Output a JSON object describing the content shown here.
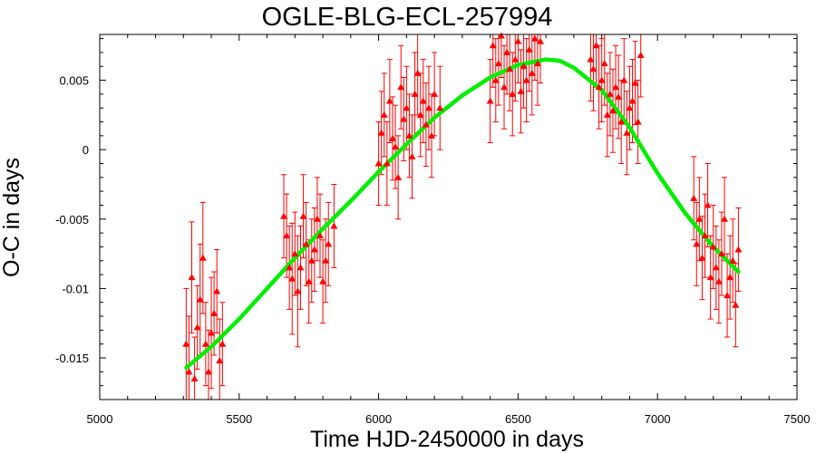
{
  "chart_data": {
    "type": "scatter",
    "title": "OGLE-BLG-ECL-257994",
    "xlabel": "Time HJD-2450000 in days",
    "ylabel": "O-C in days",
    "xlim": [
      5000,
      7500
    ],
    "ylim": [
      -0.018,
      0.0083
    ],
    "xticks": [
      5000,
      5500,
      6000,
      6500,
      7000,
      7500
    ],
    "xtick_labels": [
      "5000",
      "5500",
      "6000",
      "6500",
      "7000",
      "7500"
    ],
    "yticks": [
      -0.015,
      -0.01,
      -0.005,
      0,
      0.005
    ],
    "ytick_labels": [
      "-0.015",
      "-0.01",
      "-0.005",
      "0",
      "0.005"
    ],
    "grid": false,
    "colors": {
      "points": "#ff0000",
      "fit": "#00ee00",
      "frame": "#000000"
    },
    "series": [
      {
        "type": "scatter_with_errorbars",
        "marker": "triangle",
        "points": [
          [
            5310,
            -0.014,
            0.004
          ],
          [
            5320,
            -0.016,
            0.004
          ],
          [
            5330,
            -0.0092,
            0.004
          ],
          [
            5340,
            -0.0165,
            0.003
          ],
          [
            5350,
            -0.0128,
            0.003
          ],
          [
            5360,
            -0.0108,
            0.004
          ],
          [
            5370,
            -0.0078,
            0.004
          ],
          [
            5380,
            -0.014,
            0.003
          ],
          [
            5390,
            -0.016,
            0.003
          ],
          [
            5400,
            -0.0132,
            0.004
          ],
          [
            5410,
            -0.0118,
            0.003
          ],
          [
            5420,
            -0.0102,
            0.003
          ],
          [
            5430,
            -0.0152,
            0.003
          ],
          [
            5440,
            -0.014,
            0.003
          ],
          [
            5660,
            -0.0048,
            0.003
          ],
          [
            5670,
            -0.0062,
            0.003
          ],
          [
            5680,
            -0.0085,
            0.003
          ],
          [
            5690,
            -0.0093,
            0.004
          ],
          [
            5700,
            -0.0075,
            0.003
          ],
          [
            5710,
            -0.0102,
            0.004
          ],
          [
            5720,
            -0.0085,
            0.003
          ],
          [
            5730,
            -0.0048,
            0.003
          ],
          [
            5740,
            -0.0068,
            0.003
          ],
          [
            5750,
            -0.0095,
            0.003
          ],
          [
            5760,
            -0.008,
            0.003
          ],
          [
            5770,
            -0.0072,
            0.003
          ],
          [
            5780,
            -0.005,
            0.003
          ],
          [
            5790,
            -0.0062,
            0.003
          ],
          [
            5800,
            -0.0095,
            0.003
          ],
          [
            5810,
            -0.008,
            0.003
          ],
          [
            5820,
            -0.0068,
            0.003
          ],
          [
            5840,
            -0.0055,
            0.003
          ],
          [
            6000,
            -0.001,
            0.003
          ],
          [
            6010,
            0.0012,
            0.003
          ],
          [
            6020,
            0.0025,
            0.003
          ],
          [
            6030,
            -0.001,
            0.003
          ],
          [
            6040,
            0.0035,
            0.003
          ],
          [
            6050,
            0.0008,
            0.003
          ],
          [
            6060,
            0.0002,
            0.003
          ],
          [
            6070,
            -0.002,
            0.003
          ],
          [
            6080,
            0.0045,
            0.003
          ],
          [
            6090,
            0.0022,
            0.003
          ],
          [
            6100,
            0.003,
            0.003
          ],
          [
            6110,
            0.001,
            0.003
          ],
          [
            6120,
            -0.0005,
            0.003
          ],
          [
            6130,
            0.004,
            0.003
          ],
          [
            6140,
            0.0055,
            0.003
          ],
          [
            6150,
            0.0025,
            0.003
          ],
          [
            6160,
            0.0035,
            0.003
          ],
          [
            6170,
            0.0018,
            0.003
          ],
          [
            6180,
            0.003,
            0.003
          ],
          [
            6190,
            0.001,
            0.003
          ],
          [
            6200,
            0.004,
            0.003
          ],
          [
            6220,
            0.003,
            0.003
          ],
          [
            6400,
            0.0035,
            0.003
          ],
          [
            6410,
            0.0075,
            0.003
          ],
          [
            6420,
            0.005,
            0.003
          ],
          [
            6430,
            0.0062,
            0.003
          ],
          [
            6440,
            0.0082,
            0.003
          ],
          [
            6450,
            0.0045,
            0.003
          ],
          [
            6460,
            0.007,
            0.003
          ],
          [
            6470,
            0.0058,
            0.003
          ],
          [
            6480,
            0.004,
            0.003
          ],
          [
            6490,
            0.0065,
            0.003
          ],
          [
            6500,
            0.0078,
            0.003
          ],
          [
            6510,
            0.0042,
            0.003
          ],
          [
            6520,
            0.006,
            0.003
          ],
          [
            6530,
            0.005,
            0.003
          ],
          [
            6540,
            0.0072,
            0.003
          ],
          [
            6550,
            0.0055,
            0.003
          ],
          [
            6560,
            0.008,
            0.003
          ],
          [
            6570,
            0.0062,
            0.003
          ],
          [
            6580,
            0.0078,
            0.003
          ],
          [
            6760,
            0.0065,
            0.003
          ],
          [
            6770,
            0.0058,
            0.003
          ],
          [
            6780,
            0.0075,
            0.003
          ],
          [
            6790,
            0.0045,
            0.003
          ],
          [
            6800,
            0.005,
            0.003
          ],
          [
            6810,
            0.0062,
            0.003
          ],
          [
            6820,
            0.0025,
            0.003
          ],
          [
            6830,
            0.004,
            0.003
          ],
          [
            6840,
            0.0028,
            0.003
          ],
          [
            6850,
            0.0045,
            0.003
          ],
          [
            6860,
            0.0038,
            0.003
          ],
          [
            6870,
            0.002,
            0.003
          ],
          [
            6880,
            0.005,
            0.003
          ],
          [
            6890,
            0.0012,
            0.003
          ],
          [
            6900,
            0.003,
            0.003
          ],
          [
            6910,
            0.0035,
            0.003
          ],
          [
            6920,
            0.0048,
            0.003
          ],
          [
            6930,
            0.002,
            0.003
          ],
          [
            6940,
            0.0068,
            0.003
          ],
          [
            7130,
            -0.0035,
            0.003
          ],
          [
            7140,
            -0.0068,
            0.003
          ],
          [
            7150,
            -0.005,
            0.003
          ],
          [
            7160,
            -0.0078,
            0.003
          ],
          [
            7170,
            -0.0062,
            0.003
          ],
          [
            7180,
            -0.004,
            0.003
          ],
          [
            7190,
            -0.0092,
            0.003
          ],
          [
            7200,
            -0.007,
            0.003
          ],
          [
            7210,
            -0.0085,
            0.003
          ],
          [
            7220,
            -0.0095,
            0.003
          ],
          [
            7230,
            -0.0075,
            0.003
          ],
          [
            7240,
            -0.005,
            0.003
          ],
          [
            7250,
            -0.0105,
            0.003
          ],
          [
            7260,
            -0.0092,
            0.003
          ],
          [
            7270,
            -0.008,
            0.003
          ],
          [
            7280,
            -0.0112,
            0.003
          ],
          [
            7290,
            -0.0072,
            0.003
          ]
        ]
      },
      {
        "type": "fit_line",
        "points": [
          [
            5310,
            -0.0157
          ],
          [
            5400,
            -0.0142
          ],
          [
            5500,
            -0.0122
          ],
          [
            5600,
            -0.01
          ],
          [
            5700,
            -0.0078
          ],
          [
            5800,
            -0.0057
          ],
          [
            5900,
            -0.0037
          ],
          [
            6000,
            -0.0016
          ],
          [
            6100,
            0.0004
          ],
          [
            6200,
            0.0023
          ],
          [
            6300,
            0.0039
          ],
          [
            6400,
            0.0052
          ],
          [
            6500,
            0.0061
          ],
          [
            6600,
            0.0065
          ],
          [
            6650,
            0.0064
          ],
          [
            6700,
            0.0059
          ],
          [
            6800,
            0.0043
          ],
          [
            6900,
            0.0016
          ],
          [
            7000,
            -0.0017
          ],
          [
            7100,
            -0.0046
          ],
          [
            7200,
            -0.007
          ],
          [
            7290,
            -0.0088
          ]
        ]
      }
    ]
  }
}
